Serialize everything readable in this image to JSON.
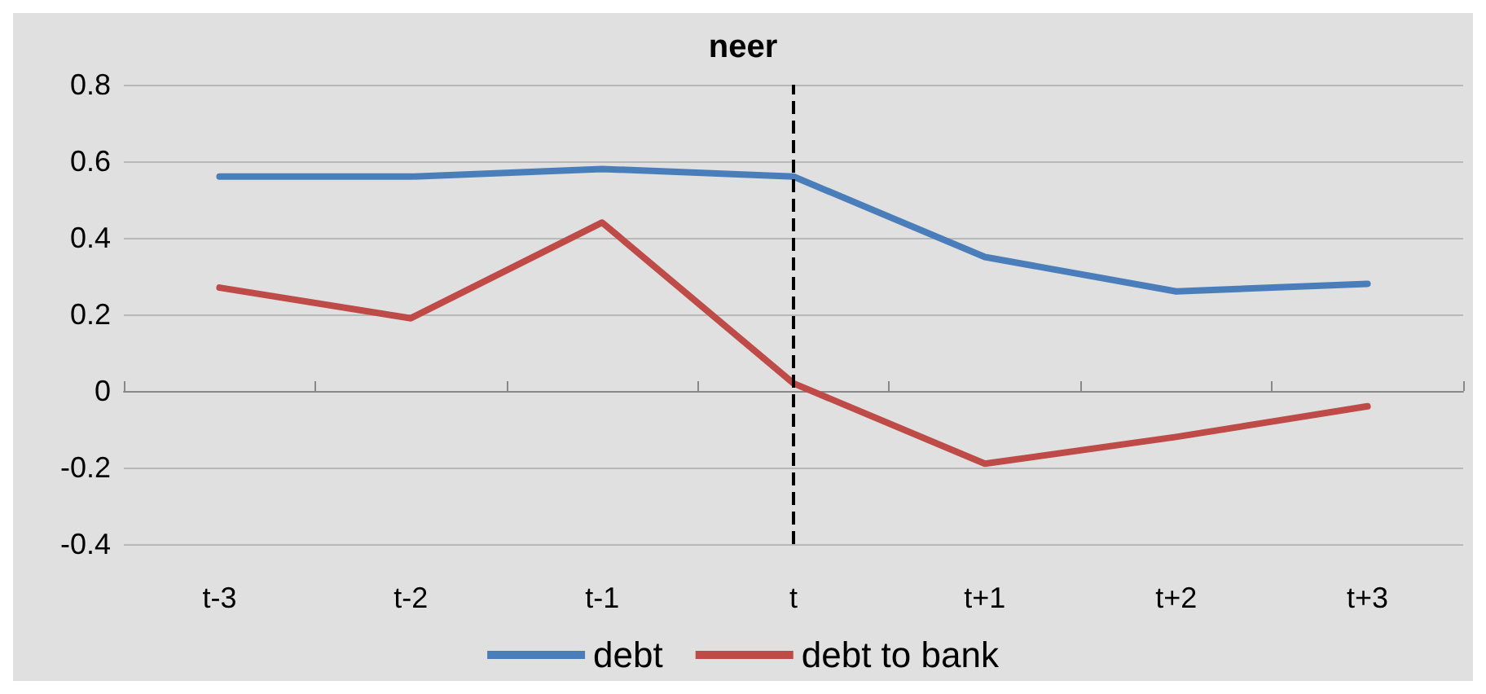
{
  "chart_data": {
    "type": "line",
    "title": "neer",
    "categories": [
      "t-3",
      "t-2",
      "t-1",
      "t",
      "t+1",
      "t+2",
      "t+3"
    ],
    "series": [
      {
        "name": "debt",
        "color": "#4a7ebb",
        "values": [
          0.56,
          0.56,
          0.58,
          0.56,
          0.35,
          0.26,
          0.28
        ]
      },
      {
        "name": "debt to bank",
        "color": "#be4b48",
        "values": [
          0.27,
          0.19,
          0.44,
          0.02,
          -0.19,
          -0.12,
          -0.04
        ]
      }
    ],
    "ylim": [
      -0.4,
      0.8
    ],
    "yticks": [
      -0.4,
      -0.2,
      0,
      0.2,
      0.4,
      0.6,
      0.8
    ],
    "grid": "y",
    "legend": "bottom",
    "marker": "none",
    "line_style": "solid",
    "ref_lines": [
      {
        "axis": "x",
        "value": "t",
        "color": "#000000",
        "line_style": "dashed"
      }
    ]
  }
}
